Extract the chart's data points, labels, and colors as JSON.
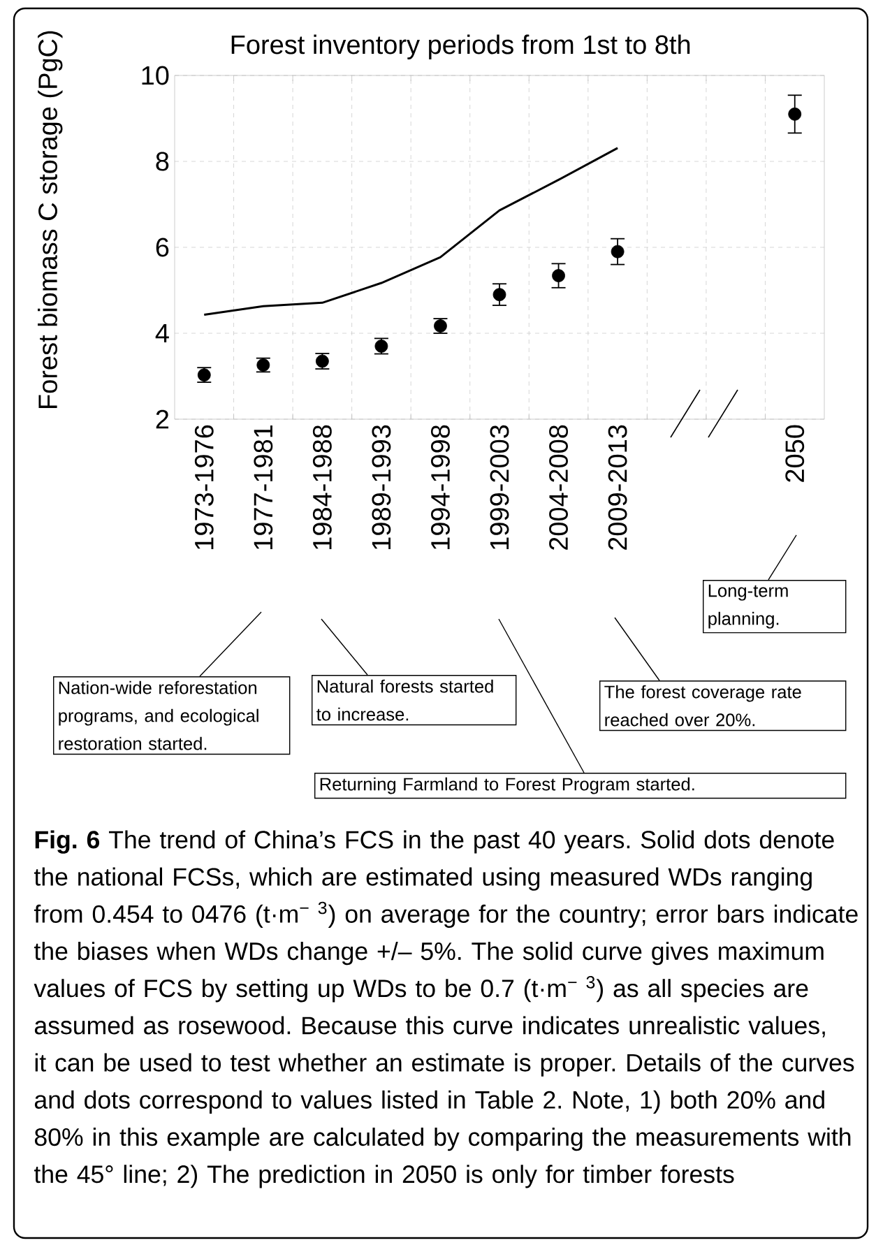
{
  "chart_data": {
    "type": "line",
    "title": "Forest inventory periods from 1st to 8th",
    "ylabel": "Forest biomass C storage (PgC)",
    "categories": [
      "1973-1976",
      "1977-1981",
      "1984-1988",
      "1989-1993",
      "1994-1998",
      "1999-2003",
      "2004-2008",
      "2009-2013",
      null,
      null,
      "2050"
    ],
    "series": [
      {
        "color": "#000000",
        "marker": "none",
        "line_style": "solid",
        "values": [
          4.43,
          4.63,
          4.71,
          5.17,
          5.77,
          6.86,
          7.57,
          8.31,
          null,
          null,
          null
        ]
      },
      {
        "type": "scatter",
        "color": "#000000",
        "marker": "circle",
        "values": [
          3.03,
          3.26,
          3.35,
          3.7,
          4.17,
          4.9,
          5.34,
          5.9,
          null,
          null,
          9.1
        ],
        "errors": [
          0.17,
          0.16,
          0.18,
          0.18,
          0.17,
          0.25,
          0.28,
          0.3,
          null,
          null,
          0.44
        ]
      }
    ],
    "ylim": [
      2,
      10
    ],
    "yticks": [
      2,
      4,
      6,
      8,
      10
    ],
    "grid": true,
    "annotations": [
      "Nation-wide reforestation programs, and  ecological restoration started.",
      "Natural forests started to increase.",
      "Returning Farmland to Forest Program started.",
      "The forest coverage rate reached over 20%.",
      "Long-term planning.",
      "**Fig. 6** The trend of China’s FCS in the past 40 years. Solid dots denote the national FCSs, which are estimated using measured WDs ranging from 0.454 to 0476 (t·m$^{− 3}$) on average for the country; error bars indicate the biases when WDs change +/– 5%. The solid curve gives maximum values of FCS by setting up WDs to be 0.7 (t·m$^{− 3}$) as all species are assumed as rosewood. Because this curve indicates unrealistic values, it can be used to test whether an estimate is proper. Details of the curves and dots correspond to values listed in Table 2. Note, 1) both 20% and 80% in this example are calculated by comparing the measurements with the 45° line; 2) The prediction in 2050 is only for timber forests"
    ]
  }
}
